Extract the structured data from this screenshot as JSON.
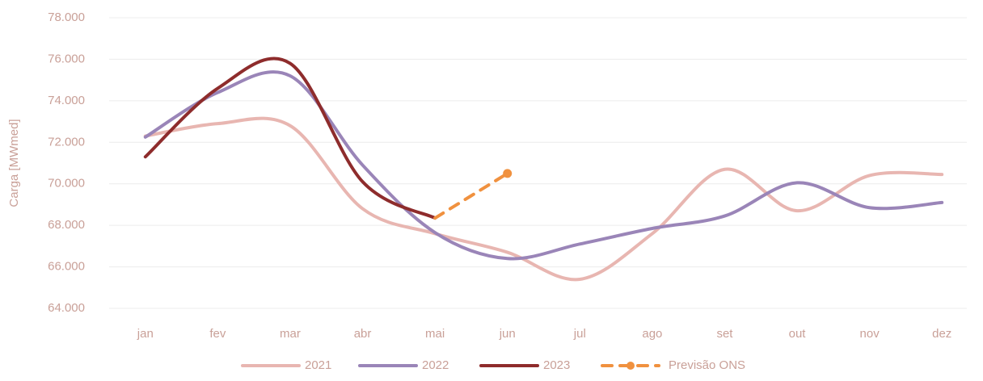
{
  "chart_data": {
    "type": "line",
    "y_label": "Carga [MWmed]",
    "categories": [
      "jan",
      "fev",
      "mar",
      "abr",
      "mai",
      "jun",
      "jul",
      "ago",
      "set",
      "out",
      "nov",
      "dez"
    ],
    "series": [
      {
        "name": "2021",
        "color": "#e8b6b1",
        "values": [
          72300,
          72900,
          72800,
          68800,
          67600,
          66700,
          65400,
          67600,
          70700,
          68700,
          70400,
          70450
        ]
      },
      {
        "name": "2022",
        "color": "#9a85b8",
        "values": [
          72250,
          74400,
          75200,
          70900,
          67650,
          66400,
          67100,
          67850,
          68450,
          70050,
          68850,
          69100
        ]
      },
      {
        "name": "2023",
        "color": "#8e2c2c",
        "values": [
          71300,
          74600,
          75800,
          70100,
          68350,
          null,
          null,
          null,
          null,
          null,
          null,
          null
        ]
      },
      {
        "name": "Previsão ONS",
        "color": "#f0913f",
        "dashed": true,
        "values": [
          null,
          null,
          null,
          null,
          68350,
          70500,
          null,
          null,
          null,
          null,
          null,
          null
        ]
      }
    ],
    "ylim": [
      64000,
      78000
    ],
    "yticks": [
      {
        "value": 64000,
        "label": "64.000"
      },
      {
        "value": 66000,
        "label": "66.000"
      },
      {
        "value": 68000,
        "label": "68.000"
      },
      {
        "value": 70000,
        "label": "70.000"
      },
      {
        "value": 72000,
        "label": "72.000"
      },
      {
        "value": 74000,
        "label": "74.000"
      },
      {
        "value": 76000,
        "label": "76.000"
      },
      {
        "value": 78000,
        "label": "78.000"
      }
    ],
    "grid": true,
    "legend": "bottom"
  }
}
